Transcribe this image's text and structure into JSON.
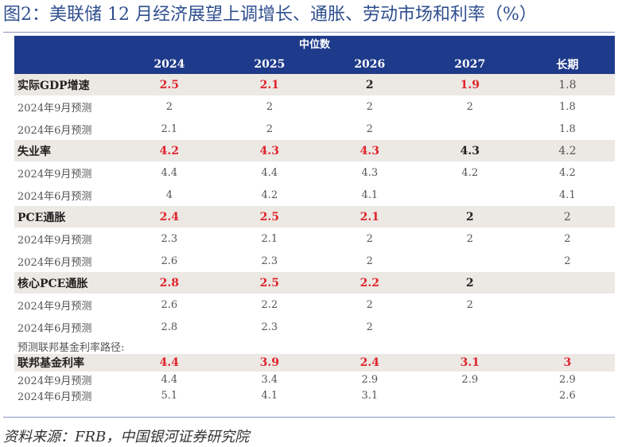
{
  "title": "图2：美联储 12 月经济展望上调增长、通胀、劳动市场和利率（%）",
  "header_group": "中位数",
  "columns": [
    "2024",
    "2025",
    "2026",
    "2027",
    "长期"
  ],
  "groups": [
    {
      "label": "实际GDP增速",
      "values": [
        "2.5",
        "2.1",
        "2",
        "1.9",
        "1.8"
      ],
      "styles": [
        "red",
        "red",
        "dark",
        "red",
        "light"
      ],
      "subs": [
        {
          "label": "2024年9月预测",
          "values": [
            "2",
            "2",
            "2",
            "2",
            "1.8"
          ]
        },
        {
          "label": "2024年6月预测",
          "values": [
            "2.1",
            "2",
            "2",
            "",
            "1.8"
          ]
        }
      ]
    },
    {
      "label": "失业率",
      "values": [
        "4.2",
        "4.3",
        "4.3",
        "4.3",
        "4.2"
      ],
      "styles": [
        "red",
        "red",
        "red",
        "dark",
        "light"
      ],
      "subs": [
        {
          "label": "2024年9月预测",
          "values": [
            "4.4",
            "4.4",
            "4.3",
            "4.2",
            "4.2"
          ]
        },
        {
          "label": "2024年6月预测",
          "values": [
            "4",
            "4.2",
            "4.1",
            "",
            "4.1"
          ]
        }
      ]
    },
    {
      "label": "PCE通胀",
      "values": [
        "2.4",
        "2.5",
        "2.1",
        "2",
        "2"
      ],
      "styles": [
        "red",
        "red",
        "red",
        "dark",
        "light"
      ],
      "subs": [
        {
          "label": "2024年9月预测",
          "values": [
            "2.3",
            "2.1",
            "2",
            "2",
            "2"
          ]
        },
        {
          "label": "2024年6月预测",
          "values": [
            "2.6",
            "2.3",
            "2",
            "",
            "2"
          ]
        }
      ]
    },
    {
      "label": "核心PCE通胀",
      "values": [
        "2.8",
        "2.5",
        "2.2",
        "2",
        ""
      ],
      "styles": [
        "red",
        "red",
        "red",
        "dark",
        "light"
      ],
      "subs": [
        {
          "label": "2024年9月预测",
          "values": [
            "2.6",
            "2.2",
            "2",
            "2",
            ""
          ]
        },
        {
          "label": "2024年6月预测",
          "values": [
            "2.8",
            "2.3",
            "2",
            "",
            ""
          ]
        }
      ]
    }
  ],
  "rate_section": {
    "note": "预测联邦基金利率路径:",
    "label": "联邦基金利率",
    "values": [
      "4.4",
      "3.9",
      "2.4",
      "3.1",
      "3"
    ],
    "styles": [
      "red",
      "red",
      "red",
      "red",
      "red"
    ],
    "subs": [
      {
        "label": "2024年9月预测",
        "values": [
          "4.4",
          "3.4",
          "2.9",
          "2.9",
          "2.9"
        ]
      },
      {
        "label": "2024年6月预测",
        "values": [
          "5.1",
          "4.1",
          "3.1",
          "",
          "2.6"
        ]
      }
    ]
  },
  "source": "资料来源：FRB，中国银河证券研究院"
}
